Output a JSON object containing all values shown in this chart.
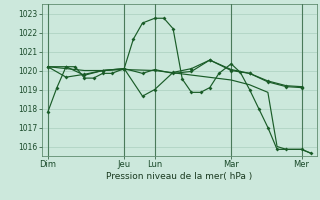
{
  "xlabel": "Pression niveau de la mer( hPa )",
  "background_color": "#cce8dc",
  "grid_color": "#aacfbf",
  "line_color": "#1a5c28",
  "ylim": [
    1015.5,
    1023.5
  ],
  "yticks": [
    1016,
    1017,
    1018,
    1019,
    1020,
    1021,
    1022,
    1023
  ],
  "day_labels": [
    "Dim",
    "Jeu",
    "Lun",
    "Mar",
    "Mer"
  ],
  "day_positions": [
    8,
    108,
    148,
    248,
    340
  ],
  "xlim": [
    0,
    360
  ],
  "line1_x": [
    8,
    20,
    32,
    44,
    56,
    68,
    80,
    92,
    108,
    120,
    132,
    148,
    160,
    172,
    184,
    196,
    208,
    220,
    232,
    248,
    260,
    272,
    284,
    296,
    308,
    320,
    340,
    352
  ],
  "line1_y": [
    1017.8,
    1019.1,
    1020.2,
    1020.2,
    1019.6,
    1019.6,
    1019.85,
    1019.85,
    1020.1,
    1021.65,
    1022.5,
    1022.75,
    1022.75,
    1022.2,
    1019.55,
    1018.85,
    1018.85,
    1019.1,
    1019.85,
    1020.35,
    1019.9,
    1019.0,
    1018.0,
    1017.0,
    1015.85,
    1015.85,
    1015.85,
    1015.65
  ],
  "line2_x": [
    8,
    32,
    56,
    80,
    108,
    132,
    148,
    172,
    196,
    220,
    248,
    272,
    296,
    320,
    340
  ],
  "line2_y": [
    1020.2,
    1020.2,
    1019.75,
    1020.0,
    1020.1,
    1019.85,
    1020.05,
    1019.85,
    1019.95,
    1020.55,
    1020.05,
    1019.85,
    1019.45,
    1019.2,
    1019.15
  ],
  "line3_x": [
    8,
    32,
    56,
    80,
    108,
    132,
    148,
    172,
    196,
    220,
    248,
    272,
    296,
    320,
    340
  ],
  "line3_y": [
    1020.2,
    1019.65,
    1019.8,
    1020.0,
    1020.1,
    1018.65,
    1019.0,
    1019.9,
    1020.1,
    1020.55,
    1020.0,
    1019.85,
    1019.4,
    1019.15,
    1019.1
  ],
  "line4_x": [
    8,
    32,
    56,
    80,
    108,
    148,
    248,
    272,
    296,
    308,
    320,
    340,
    352
  ],
  "line4_y": [
    1020.2,
    1020.1,
    1020.0,
    1020.0,
    1020.05,
    1020.0,
    1019.5,
    1019.25,
    1018.85,
    1016.0,
    1015.85,
    1015.85,
    1015.65
  ]
}
